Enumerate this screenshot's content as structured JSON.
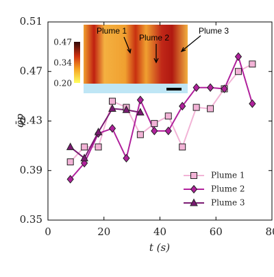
{
  "chart_data": {
    "type": "line",
    "x_label": "t (s)",
    "y_label": "φ̄p",
    "xlim": [
      0,
      80
    ],
    "xticks": [
      0,
      20,
      40,
      60,
      80
    ],
    "ylim": [
      0.35,
      0.51
    ],
    "yticks": [
      0.35,
      0.39,
      0.43,
      0.47,
      0.51
    ],
    "legend": "lower right",
    "series": [
      {
        "name": "Plume 1",
        "color": "#f2b3d6",
        "marker": "square",
        "x": [
          8,
          13,
          18,
          23,
          28,
          33,
          38,
          43,
          48,
          53,
          58,
          63,
          68,
          73
        ],
        "values": [
          0.397,
          0.409,
          0.409,
          0.446,
          0.441,
          0.419,
          0.428,
          0.434,
          0.409,
          0.441,
          0.44,
          0.456,
          0.47,
          0.476
        ]
      },
      {
        "name": "Plume 2",
        "color": "#b0209c",
        "marker": "diamond",
        "x": [
          8,
          13,
          18,
          23,
          28,
          33,
          38,
          43,
          48,
          53,
          58,
          63,
          68,
          73
        ],
        "values": [
          0.383,
          0.396,
          0.42,
          0.424,
          0.4,
          0.447,
          0.422,
          0.422,
          0.442,
          0.457,
          0.457,
          0.456,
          0.482,
          0.444
        ]
      },
      {
        "name": "Plume 3",
        "color": "#7a1a72",
        "marker": "triangle",
        "x": [
          8,
          13,
          18,
          23,
          28,
          33
        ],
        "values": [
          0.409,
          0.4,
          0.421,
          0.44,
          0.439,
          0.437
        ]
      }
    ],
    "inset": {
      "colorbar_labels": [
        "0.47",
        "0.34",
        "0.20"
      ],
      "annotations": [
        "Plume 1",
        "Plume 2",
        "Plume 3"
      ]
    }
  }
}
